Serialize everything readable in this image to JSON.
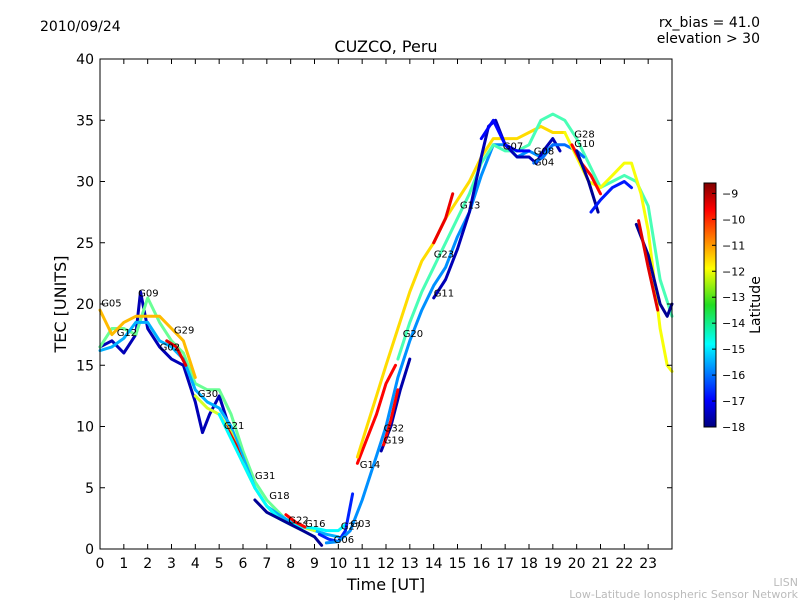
{
  "header": {
    "date": "2010/09/24",
    "rx_bias": "rx_bias = 41.0",
    "elevation": "elevation > 30"
  },
  "footer": {
    "line1": "LISN",
    "line2": "Low-Latitude Ionospheric Sensor Network"
  },
  "chart_data": {
    "type": "scatter",
    "title": "CUZCO, Peru",
    "xlabel": "Time [UT]",
    "ylabel": "TEC [UNITS]",
    "xlim": [
      0,
      24
    ],
    "ylim": [
      0,
      40
    ],
    "x_ticks": [
      "0",
      "1",
      "2",
      "3",
      "4",
      "5",
      "6",
      "7",
      "8",
      "9",
      "10",
      "11",
      "12",
      "13",
      "14",
      "15",
      "16",
      "17",
      "18",
      "19",
      "20",
      "21",
      "22",
      "23"
    ],
    "y_ticks": [
      "0",
      "5",
      "10",
      "15",
      "20",
      "25",
      "30",
      "35",
      "40"
    ],
    "colorbar": {
      "label": "Latitude",
      "range": [
        -18,
        -8.6
      ],
      "ticks": [
        "−9",
        "−10",
        "−11",
        "−12",
        "−13",
        "−14",
        "−15",
        "−16",
        "−17",
        "−18"
      ],
      "tick_values": [
        -9,
        -10,
        -11,
        -12,
        -13,
        -14,
        -15,
        -16,
        -17,
        -18
      ],
      "colormap": "jet"
    },
    "satellite_labels": [
      {
        "text": "G05",
        "x": 0.05,
        "y": 19.8
      },
      {
        "text": "G09",
        "x": 1.6,
        "y": 20.6
      },
      {
        "text": "G12",
        "x": 0.7,
        "y": 17.4
      },
      {
        "text": "G29",
        "x": 3.1,
        "y": 17.6
      },
      {
        "text": "G02",
        "x": 2.5,
        "y": 16.2
      },
      {
        "text": "G30",
        "x": 4.1,
        "y": 12.4
      },
      {
        "text": "G21",
        "x": 5.2,
        "y": 9.8
      },
      {
        "text": "G31",
        "x": 6.5,
        "y": 5.7
      },
      {
        "text": "G18",
        "x": 7.1,
        "y": 4.1
      },
      {
        "text": "G22",
        "x": 7.9,
        "y": 2.1
      },
      {
        "text": "G16",
        "x": 8.6,
        "y": 1.8
      },
      {
        "text": "G27",
        "x": 10.1,
        "y": 1.6
      },
      {
        "text": "G03",
        "x": 10.5,
        "y": 1.8
      },
      {
        "text": "G06",
        "x": 9.8,
        "y": 0.5
      },
      {
        "text": "G14",
        "x": 10.9,
        "y": 6.6
      },
      {
        "text": "G32",
        "x": 11.9,
        "y": 9.6
      },
      {
        "text": "G19",
        "x": 11.9,
        "y": 8.6
      },
      {
        "text": "G20",
        "x": 12.7,
        "y": 17.3
      },
      {
        "text": "G11",
        "x": 14.0,
        "y": 20.6
      },
      {
        "text": "G23",
        "x": 14.0,
        "y": 23.8
      },
      {
        "text": "G13",
        "x": 15.1,
        "y": 27.8
      },
      {
        "text": "G07",
        "x": 16.9,
        "y": 32.6
      },
      {
        "text": "G08",
        "x": 18.2,
        "y": 32.2
      },
      {
        "text": "G04",
        "x": 18.2,
        "y": 31.3
      },
      {
        "text": "G28",
        "x": 19.9,
        "y": 33.6
      },
      {
        "text": "G10",
        "x": 19.9,
        "y": 32.8
      }
    ],
    "series": [
      {
        "lat": -17.5,
        "points": [
          [
            0,
            16.5
          ],
          [
            0.5,
            17
          ],
          [
            1,
            16
          ],
          [
            1.5,
            17.5
          ],
          [
            1.7,
            21
          ],
          [
            2,
            18
          ],
          [
            2.5,
            16.5
          ],
          [
            3,
            15.5
          ],
          [
            3.5,
            15
          ],
          [
            4,
            12
          ],
          [
            4.3,
            9.5
          ],
          [
            4.6,
            11
          ],
          [
            5,
            12.5
          ],
          [
            5.5,
            9.5
          ]
        ]
      },
      {
        "lat": -13.5,
        "points": [
          [
            0,
            16.5
          ],
          [
            0.5,
            18
          ],
          [
            1,
            18
          ],
          [
            1.5,
            17.5
          ],
          [
            2,
            20.5
          ],
          [
            2.5,
            18.5
          ],
          [
            3,
            17
          ],
          [
            3.5,
            16
          ],
          [
            4,
            13.5
          ],
          [
            4.5,
            13
          ],
          [
            5,
            13
          ],
          [
            5.5,
            11
          ],
          [
            6,
            8
          ],
          [
            6.5,
            5.5
          ],
          [
            7,
            4
          ],
          [
            7.5,
            3
          ],
          [
            8,
            2
          ],
          [
            8.5,
            1.5
          ],
          [
            9,
            1
          ]
        ]
      },
      {
        "lat": -11.5,
        "points": [
          [
            0,
            19.5
          ],
          [
            0.5,
            17.5
          ],
          [
            1,
            18.5
          ],
          [
            1.5,
            19
          ],
          [
            2,
            19
          ],
          [
            2.5,
            19
          ],
          [
            3,
            18
          ],
          [
            3.5,
            17
          ],
          [
            4,
            14
          ]
        ]
      },
      {
        "lat": -15.2,
        "points": [
          [
            0,
            16.2
          ],
          [
            0.5,
            16.5
          ],
          [
            1,
            17.2
          ],
          [
            1.5,
            18.5
          ],
          [
            2,
            18.5
          ],
          [
            2.5,
            17
          ],
          [
            3,
            16.5
          ],
          [
            3.5,
            15.5
          ],
          [
            4,
            13
          ],
          [
            4.5,
            12
          ],
          [
            5,
            11.5
          ],
          [
            5.5,
            10
          ],
          [
            6,
            7.5
          ],
          [
            6.5,
            5
          ],
          [
            7,
            3.5
          ],
          [
            7.5,
            2.8
          ],
          [
            8,
            2.2
          ],
          [
            8.5,
            1.8
          ],
          [
            9,
            1.5
          ],
          [
            9.5,
            1.2
          ],
          [
            10,
            1
          ]
        ]
      },
      {
        "lat": -9.5,
        "points": [
          [
            2.8,
            17
          ],
          [
            3.2,
            16.5
          ],
          [
            3.6,
            15
          ]
        ]
      },
      {
        "lat": -12.5,
        "points": [
          [
            4,
            12.5
          ],
          [
            4.5,
            11.5
          ],
          [
            5,
            11
          ],
          [
            5.5,
            9.5
          ],
          [
            6,
            7
          ],
          [
            6.5,
            5
          ],
          [
            7,
            3.5
          ],
          [
            7.5,
            2.5
          ],
          [
            8,
            2
          ],
          [
            8.5,
            1.8
          ],
          [
            9,
            1.5
          ]
        ]
      },
      {
        "lat": -9.5,
        "points": [
          [
            5.3,
            10
          ],
          [
            5.7,
            8.5
          ],
          [
            6,
            7
          ]
        ]
      },
      {
        "lat": -14.5,
        "points": [
          [
            5,
            11
          ],
          [
            5.5,
            9
          ],
          [
            6,
            7
          ],
          [
            6.5,
            5
          ],
          [
            7,
            3.5
          ],
          [
            7.5,
            2.5
          ],
          [
            8,
            2
          ],
          [
            8.5,
            1.8
          ],
          [
            9,
            1.7
          ],
          [
            9.5,
            1.5
          ],
          [
            10,
            1.5
          ],
          [
            10.3,
            2
          ]
        ]
      },
      {
        "lat": -17.8,
        "points": [
          [
            6.5,
            4
          ],
          [
            7,
            3
          ],
          [
            7.5,
            2.5
          ],
          [
            8,
            2
          ],
          [
            8.5,
            1.5
          ],
          [
            9,
            1
          ],
          [
            9.3,
            0.3
          ]
        ]
      },
      {
        "lat": -9.8,
        "points": [
          [
            7.8,
            2.8
          ],
          [
            8.2,
            2.2
          ],
          [
            8.6,
            1.8
          ]
        ]
      },
      {
        "lat": -16.5,
        "points": [
          [
            9.2,
            1.2
          ],
          [
            9.6,
            0.8
          ],
          [
            10,
            0.6
          ],
          [
            10.3,
            1.5
          ],
          [
            10.6,
            4.5
          ]
        ]
      },
      {
        "lat": -15.5,
        "points": [
          [
            9.5,
            0.5
          ],
          [
            10,
            0.6
          ],
          [
            10.5,
            1.5
          ],
          [
            11,
            4
          ],
          [
            11.5,
            7
          ],
          [
            12,
            10
          ],
          [
            12.5,
            14
          ],
          [
            13,
            17
          ],
          [
            13.5,
            19.5
          ],
          [
            14,
            21.5
          ],
          [
            14.5,
            23
          ],
          [
            15,
            25.5
          ],
          [
            15.5,
            27.5
          ],
          [
            16,
            30.5
          ],
          [
            16.5,
            33
          ],
          [
            17,
            33
          ],
          [
            17.5,
            32
          ],
          [
            18,
            32.5
          ],
          [
            18.5,
            32
          ],
          [
            19,
            33
          ]
        ]
      },
      {
        "lat": -9.8,
        "points": [
          [
            10.8,
            7
          ],
          [
            11.2,
            9
          ],
          [
            11.6,
            11
          ],
          [
            12,
            13.5
          ],
          [
            12.4,
            15
          ]
        ]
      },
      {
        "lat": -11.8,
        "points": [
          [
            10.8,
            7.5
          ],
          [
            11.2,
            10
          ],
          [
            11.6,
            12.5
          ],
          [
            12,
            15
          ],
          [
            12.5,
            18
          ],
          [
            13,
            21
          ],
          [
            13.5,
            23.5
          ],
          [
            14,
            25
          ],
          [
            14.5,
            27
          ],
          [
            15,
            28.5
          ],
          [
            15.5,
            30
          ],
          [
            16,
            32
          ],
          [
            16.5,
            33.5
          ],
          [
            17,
            33.5
          ],
          [
            17.5,
            33.5
          ],
          [
            18,
            34
          ],
          [
            18.5,
            34.5
          ],
          [
            19,
            34
          ],
          [
            19.5,
            34
          ]
        ]
      },
      {
        "lat": -17.6,
        "points": [
          [
            11.8,
            8
          ],
          [
            12.2,
            10
          ],
          [
            12.6,
            13
          ],
          [
            13,
            15.5
          ]
        ]
      },
      {
        "lat": -9.8,
        "points": [
          [
            11.9,
            8.5
          ],
          [
            12.2,
            10.5
          ],
          [
            12.5,
            13
          ]
        ]
      },
      {
        "lat": -13.8,
        "points": [
          [
            12.5,
            15.5
          ],
          [
            13,
            18.5
          ],
          [
            13.5,
            21
          ],
          [
            14,
            23
          ],
          [
            14.5,
            25
          ],
          [
            15,
            27
          ],
          [
            15.5,
            29
          ],
          [
            16,
            31.5
          ],
          [
            16.5,
            33
          ],
          [
            17,
            32.5
          ],
          [
            17.5,
            32.5
          ],
          [
            18,
            33
          ],
          [
            18.5,
            35
          ],
          [
            19,
            35.5
          ],
          [
            19.5,
            35
          ],
          [
            20,
            33.5
          ],
          [
            20.5,
            31.5
          ],
          [
            21,
            29.5
          ],
          [
            21.5,
            30
          ],
          [
            22,
            30.5
          ],
          [
            22.5,
            30
          ],
          [
            23,
            28
          ],
          [
            23.5,
            22
          ],
          [
            24,
            19
          ]
        ]
      },
      {
        "lat": -17.5,
        "points": [
          [
            14,
            20.5
          ],
          [
            14.5,
            22
          ],
          [
            15,
            24.5
          ],
          [
            15.5,
            27.5
          ],
          [
            16,
            32
          ],
          [
            16.3,
            34.5
          ],
          [
            16.6,
            35
          ],
          [
            17,
            33
          ],
          [
            17.5,
            32
          ],
          [
            18,
            32
          ],
          [
            18.3,
            31.5
          ],
          [
            18.6,
            32.5
          ],
          [
            19,
            33.5
          ],
          [
            19.3,
            32.5
          ]
        ]
      },
      {
        "lat": -9.6,
        "points": [
          [
            14,
            25
          ],
          [
            14.5,
            27
          ],
          [
            14.8,
            29
          ]
        ]
      },
      {
        "lat": -16.8,
        "points": [
          [
            16,
            33.5
          ],
          [
            16.5,
            35
          ],
          [
            17,
            33
          ],
          [
            17.5,
            32.5
          ],
          [
            18,
            32.5
          ]
        ]
      },
      {
        "lat": -15.8,
        "points": [
          [
            18.2,
            31.5
          ],
          [
            18.6,
            32
          ],
          [
            19,
            33
          ],
          [
            19.5,
            33
          ],
          [
            20,
            32.5
          ],
          [
            20.3,
            32
          ]
        ]
      },
      {
        "lat": -12.2,
        "points": [
          [
            19.5,
            34
          ],
          [
            20,
            32
          ],
          [
            20.5,
            30
          ],
          [
            21,
            29.5
          ],
          [
            21.5,
            30.5
          ],
          [
            22,
            31.5
          ],
          [
            22.3,
            31.5
          ],
          [
            22.7,
            29
          ],
          [
            23,
            26
          ],
          [
            23.5,
            18
          ],
          [
            23.8,
            15
          ],
          [
            24,
            14.5
          ]
        ]
      },
      {
        "lat": -9.8,
        "points": [
          [
            19.8,
            33
          ],
          [
            20.2,
            31.5
          ],
          [
            20.6,
            30.5
          ],
          [
            21,
            29
          ]
        ]
      },
      {
        "lat": -17.8,
        "points": [
          [
            20,
            32.5
          ],
          [
            20.5,
            30
          ],
          [
            20.9,
            27.5
          ]
        ]
      },
      {
        "lat": -16.6,
        "points": [
          [
            20.6,
            27.5
          ],
          [
            21,
            28.5
          ],
          [
            21.5,
            29.5
          ],
          [
            22,
            30
          ],
          [
            22.3,
            29.5
          ]
        ]
      },
      {
        "lat": -17.8,
        "points": [
          [
            22.5,
            26.5
          ],
          [
            23,
            24
          ],
          [
            23.5,
            20
          ],
          [
            23.8,
            19
          ],
          [
            24,
            20
          ]
        ]
      },
      {
        "lat": -9.5,
        "points": [
          [
            22.6,
            26.8
          ],
          [
            23,
            23
          ],
          [
            23.4,
            19.5
          ]
        ]
      }
    ]
  }
}
